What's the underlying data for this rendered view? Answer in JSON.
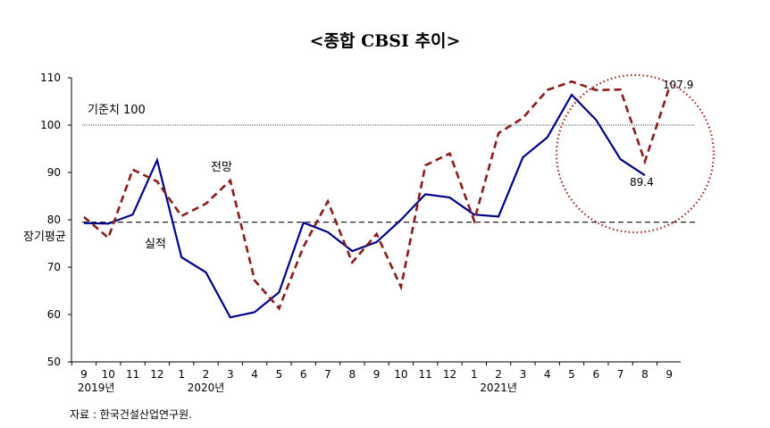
{
  "chart_data": {
    "type": "line",
    "title": "<종합 CBSI 추이>",
    "xlabel": "",
    "ylabel": "",
    "ylim": [
      50,
      110
    ],
    "yticks": [
      "50",
      "60",
      "70",
      "80",
      "90",
      "100",
      "110"
    ],
    "categories": [
      "9",
      "10",
      "11",
      "12",
      "1",
      "2",
      "3",
      "4",
      "5",
      "6",
      "7",
      "8",
      "9",
      "10",
      "11",
      "12",
      "1",
      "2",
      "3",
      "4",
      "5",
      "6",
      "7",
      "8",
      "9"
    ],
    "year_labels": [
      {
        "label": "2019년",
        "at_index": 0.5
      },
      {
        "label": "2020년",
        "at_index": 5
      },
      {
        "label": "2021년",
        "at_index": 17
      }
    ],
    "series": [
      {
        "name": "실적",
        "color": "#00008b",
        "style": "solid",
        "values": [
          79.3,
          79.2,
          81.1,
          92.6,
          72.1,
          68.9,
          59.4,
          60.5,
          64.7,
          79.4,
          77.4,
          73.4,
          75.3,
          80.0,
          85.4,
          84.7,
          81.1,
          80.7,
          93.2,
          97.4,
          106.4,
          101.1,
          92.8,
          89.4,
          null
        ]
      },
      {
        "name": "전망",
        "color": "#8b1a1a",
        "style": "dashed",
        "values": [
          80.6,
          76.2,
          90.6,
          88.1,
          80.8,
          83.4,
          88.3,
          67.2,
          61.3,
          74.3,
          83.9,
          71.0,
          77.0,
          65.8,
          91.5,
          94.0,
          79.8,
          98.3,
          101.5,
          107.4,
          109.2,
          107.4,
          107.5,
          92.3,
          107.9
        ]
      }
    ],
    "reference_lines": [
      {
        "label": "기준치 100",
        "value": 100,
        "style": "dotted"
      },
      {
        "label": "장기평균",
        "value": 79.5,
        "style": "dashed"
      }
    ],
    "data_labels": [
      {
        "series": "실적",
        "index": 23,
        "text": "89.4"
      },
      {
        "series": "전망",
        "index": 24,
        "text": "107.9"
      }
    ],
    "grid": false,
    "legend": "none"
  },
  "source": "자료 : 한국건설산업연구원."
}
